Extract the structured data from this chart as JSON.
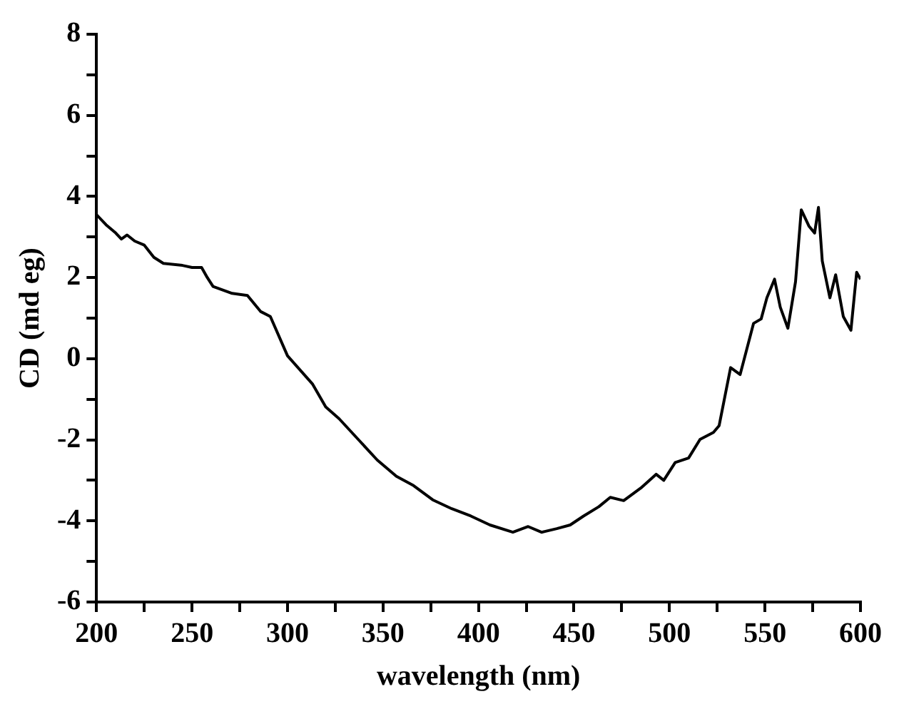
{
  "chart_data": {
    "type": "line",
    "xlabel": "wavelength (nm)",
    "ylabel": "CD (md eg)",
    "xlim": [
      200,
      600
    ],
    "ylim": [
      -6,
      8
    ],
    "xticks": [
      200,
      {
        "value": 225,
        "label": null
      },
      250,
      {
        "value": 275,
        "label": null
      },
      300,
      {
        "value": 325,
        "label": null
      },
      350,
      {
        "value": 375,
        "label": null
      },
      400,
      {
        "value": 425,
        "label": null
      },
      450,
      {
        "value": 475,
        "label": null
      },
      500,
      {
        "value": 525,
        "label": null
      },
      550,
      {
        "value": 575,
        "label": null
      },
      600
    ],
    "yticks": [
      -6,
      {
        "value": -5,
        "label": null
      },
      -4,
      {
        "value": -3,
        "label": null
      },
      -2,
      {
        "value": -1,
        "label": null
      },
      0,
      {
        "value": 1,
        "label": null
      },
      2,
      {
        "value": 3,
        "label": null
      },
      4,
      {
        "value": 5,
        "label": null
      },
      6,
      {
        "value": 7,
        "label": null
      },
      8
    ],
    "marker": "none",
    "line_style": "solid",
    "series": [
      {
        "color": "#000000",
        "x": [
          200,
          205,
          210,
          213,
          216,
          220,
          225,
          230,
          235,
          245,
          250,
          255,
          258,
          261,
          271,
          279,
          286,
          291,
          300,
          313,
          320,
          327,
          337,
          347,
          357,
          366,
          376,
          386,
          396,
          406,
          418,
          426,
          433,
          441,
          448,
          455,
          463,
          469,
          476,
          485,
          493,
          497,
          503,
          510,
          516,
          523,
          526,
          532,
          537,
          544,
          548,
          551,
          555,
          558,
          562,
          566,
          569,
          573,
          576,
          578,
          580,
          584,
          587,
          591,
          595,
          598,
          600
        ],
        "values": [
          3.55,
          3.3,
          3.1,
          2.95,
          3.05,
          2.9,
          2.8,
          2.5,
          2.35,
          2.3,
          2.25,
          2.25,
          2.0,
          1.78,
          1.61,
          1.56,
          1.16,
          1.04,
          0.07,
          -0.62,
          -1.19,
          -1.48,
          -1.99,
          -2.5,
          -2.9,
          -3.13,
          -3.48,
          -3.7,
          -3.88,
          -4.1,
          -4.28,
          -4.14,
          -4.28,
          -4.19,
          -4.1,
          -3.88,
          -3.65,
          -3.42,
          -3.5,
          -3.19,
          -2.85,
          -3.0,
          -2.56,
          -2.45,
          -1.99,
          -1.82,
          -1.65,
          -0.22,
          -0.39,
          0.87,
          0.98,
          1.5,
          1.96,
          1.27,
          0.75,
          1.9,
          3.67,
          3.27,
          3.1,
          3.73,
          2.41,
          1.5,
          2.07,
          1.04,
          0.7,
          2.13,
          1.96
        ]
      }
    ]
  }
}
